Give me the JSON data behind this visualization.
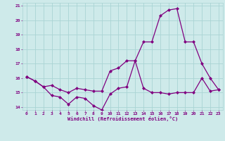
{
  "xlabel": "Windchill (Refroidissement éolien,°C)",
  "bg_color": "#ceeaea",
  "line_color": "#800080",
  "grid_color": "#aad4d4",
  "xlim": [
    -0.5,
    23.5
  ],
  "ylim": [
    13.8,
    21.2
  ],
  "xticks": [
    0,
    1,
    2,
    3,
    4,
    5,
    6,
    7,
    8,
    9,
    10,
    11,
    12,
    13,
    14,
    15,
    16,
    17,
    18,
    19,
    20,
    21,
    22,
    23
  ],
  "yticks": [
    14,
    15,
    16,
    17,
    18,
    19,
    20,
    21
  ],
  "line1_x": [
    0,
    1,
    2,
    3,
    4,
    5,
    6,
    7,
    8,
    9,
    10,
    11,
    12,
    13,
    14,
    15,
    16,
    17,
    18,
    19,
    20,
    21,
    22,
    23
  ],
  "line1_y": [
    16.1,
    15.8,
    15.4,
    14.8,
    14.7,
    14.2,
    14.7,
    14.6,
    14.1,
    13.8,
    14.9,
    15.3,
    15.4,
    17.2,
    15.3,
    15.0,
    15.0,
    14.9,
    15.0,
    15.0,
    15.0,
    16.0,
    15.1,
    15.2
  ],
  "line2_x": [
    0,
    1,
    2,
    3,
    4,
    5,
    6,
    7,
    8,
    9,
    10,
    11,
    12,
    13,
    14,
    15,
    16,
    17,
    18,
    19,
    20,
    21,
    22,
    23
  ],
  "line2_y": [
    16.1,
    15.8,
    15.4,
    15.5,
    15.2,
    15.0,
    15.3,
    15.2,
    15.1,
    15.1,
    16.5,
    16.7,
    17.2,
    17.2,
    18.5,
    18.5,
    20.3,
    20.7,
    20.8,
    18.5,
    18.5,
    17.0,
    16.0,
    15.2
  ]
}
